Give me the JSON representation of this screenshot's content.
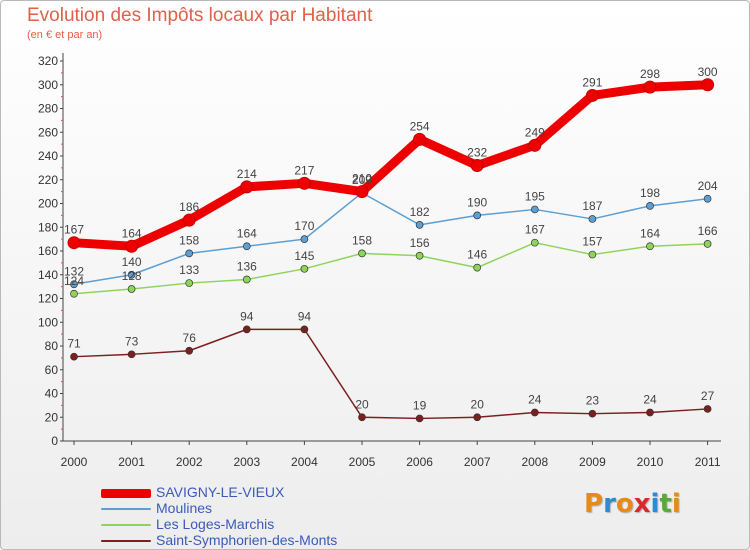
{
  "chart_data": {
    "type": "line",
    "title": "Evolution des Impôts locaux par Habitant",
    "subtitle": "(en € et par an)",
    "xlabel": "",
    "ylabel": "",
    "x": [
      "2000",
      "2001",
      "2002",
      "2003",
      "2004",
      "2005",
      "2006",
      "2007",
      "2008",
      "2009",
      "2010",
      "2011"
    ],
    "ylim": [
      0,
      320
    ],
    "yticks": [
      0,
      20,
      40,
      60,
      80,
      100,
      120,
      140,
      160,
      180,
      200,
      220,
      240,
      260,
      280,
      300,
      320
    ],
    "grid": false,
    "legend_position": "bottom-left",
    "series": [
      {
        "name": "SAVIGNY-LE-VIEUX",
        "color": "#ee0000",
        "values": [
          167,
          164,
          186,
          214,
          217,
          210,
          254,
          232,
          249,
          291,
          298,
          300
        ]
      },
      {
        "name": "Moulines",
        "color": "#5c9fd4",
        "values": [
          132,
          140,
          158,
          164,
          170,
          209,
          182,
          190,
          195,
          187,
          198,
          204
        ]
      },
      {
        "name": "Les Loges-Marchis",
        "color": "#8fd45a",
        "values": [
          124,
          128,
          133,
          136,
          145,
          158,
          156,
          146,
          167,
          157,
          164,
          166
        ]
      },
      {
        "name": "Saint-Symphorien-des-Monts",
        "color": "#7b1f1f",
        "values": [
          71,
          73,
          76,
          94,
          94,
          20,
          19,
          20,
          24,
          23,
          24,
          27
        ]
      }
    ]
  },
  "logo": {
    "letters": [
      "P",
      "r",
      "o",
      "x",
      "i",
      "t",
      "i"
    ],
    "colors": [
      "#e88a1a",
      "#2e8bd1",
      "#e88a1a",
      "#d82a2a",
      "#2e8bd1",
      "#5aa83c",
      "#e88a1a"
    ]
  }
}
